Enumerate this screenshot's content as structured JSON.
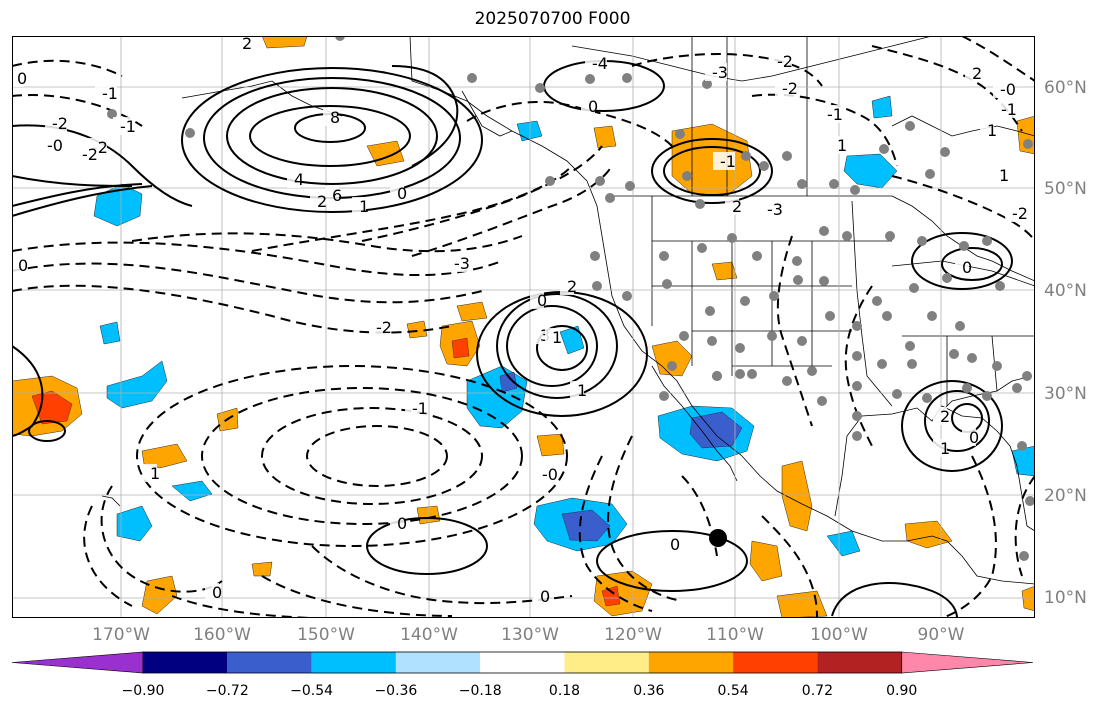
{
  "title": "2025070700 F000",
  "lon_labels": [
    "170°W",
    "160°W",
    "150°W",
    "140°W",
    "130°W",
    "120°W",
    "110°W",
    "100°W",
    "90°W"
  ],
  "lat_labels": [
    "60°N",
    "50°N",
    "40°N",
    "30°N",
    "20°N",
    "10°N"
  ],
  "colorbar": {
    "labels": [
      "−0.90",
      "−0.72",
      "−0.54",
      "−0.36",
      "−0.18",
      "0.18",
      "0.36",
      "0.54",
      "0.72",
      "0.90"
    ],
    "colors": [
      "#9b30d0",
      "#000080",
      "#3a5fcd",
      "#00bfff",
      "#b0e2ff",
      "#ffffff",
      "#ffee88",
      "#ffa500",
      "#ff4000",
      "#b22222",
      "#ff88aa"
    ]
  },
  "contour_labels": [
    "8",
    "6",
    "4",
    "2",
    "2",
    "1",
    "0",
    "-3",
    "-2",
    "-1",
    "0",
    "1",
    "3",
    "2",
    "1",
    "-1",
    "-2",
    "-2",
    "1",
    "0",
    "0",
    "0",
    "-0",
    "2",
    "1",
    "0",
    "-1",
    "2",
    "-3",
    "-4",
    "0",
    "2",
    "-0",
    "-1",
    "1",
    "1",
    "-2",
    "0",
    "-3",
    "-2",
    "-2",
    "-1",
    "1",
    "0",
    "-0",
    "-2",
    "0",
    "-1",
    "0"
  ],
  "colors": {
    "axis_label": "#808080",
    "grid": "#b0b0b0",
    "station_dot": "#808080",
    "contour": "#000000"
  }
}
